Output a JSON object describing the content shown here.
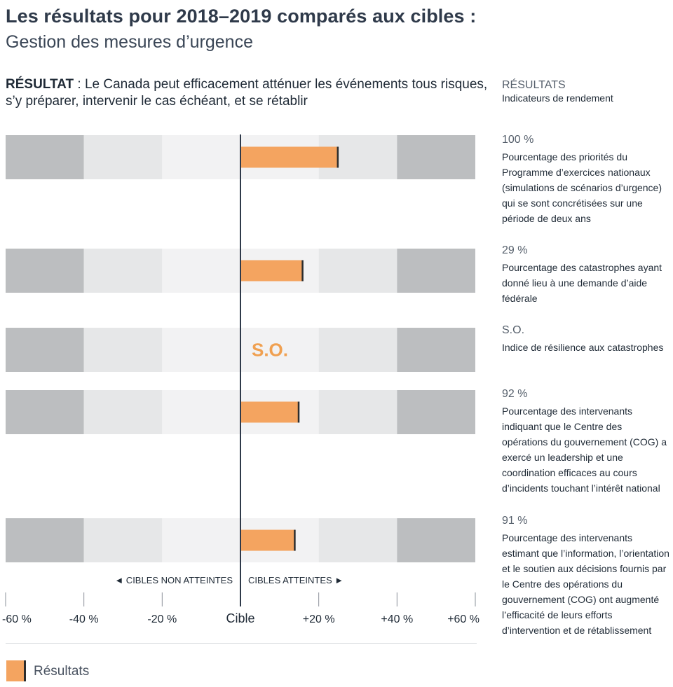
{
  "title": "Les résultats pour 2018–2019 comparés aux cibles :",
  "subtitle": "Gestion des mesures d’urgence",
  "outcome": {
    "label": "RÉSULTAT",
    "text": " : Le Canada peut efficacement atténuer les événements tous risques, s’y préparer, intervenir le cas échéant, et se rétablir"
  },
  "results_column": {
    "heading": "RÉSULTATS",
    "subheading": "Indicateurs de rendement"
  },
  "indicators": [
    {
      "value": "100 %",
      "description": "Pourcentage des priorités du Programme d’exercices nationaux (simulations de scénarios d’urgence) qui se sont concrétisées sur une période de deux ans"
    },
    {
      "value": "29 %",
      "description": "Pourcentage des catastrophes ayant donné lieu à une demande d’aide fédérale"
    },
    {
      "value": "S.O.",
      "description": "Indice de résilience aux catastrophes"
    },
    {
      "value": "92 %",
      "description": "Pourcentage des intervenants indiquant que le Centre des opérations du gouvernement (COG) a exercé un leadership et une coordination efficaces au cours d’incidents touchant l’intérêt national"
    },
    {
      "value": "91 %",
      "description": "Pourcentage des intervenants estimant que l’information, l’orientation et le soutien aux décisions fournis par le Centre des opérations du gouvernement (COG) ont augmenté l’efficacité de leurs efforts d’intervention et de rétablissement"
    }
  ],
  "chart_data": {
    "type": "bar",
    "orientation": "horizontal",
    "x_ticks": [
      "-60 %",
      "-40 %",
      "-20 %",
      "Cible",
      "+20 %",
      "+40 %",
      "+60 %"
    ],
    "xlim": [
      -60,
      60
    ],
    "values": [
      25,
      16,
      null,
      15,
      14
    ],
    "na_label": "S.O.",
    "direction_labels": {
      "left": "◄ CIBLES NON ATTEINTES",
      "right": "CIBLES ATTEINTES ►"
    },
    "legend": "Résultats",
    "colors": {
      "bar": "#f4a460",
      "bar_end": "#2d2d2d",
      "band_outer": "#bcbec0",
      "band_mid": "#e6e7e8",
      "band_inner": "#f2f2f3",
      "axis": "#2f3a4a",
      "na_text": "#f0a050"
    }
  }
}
